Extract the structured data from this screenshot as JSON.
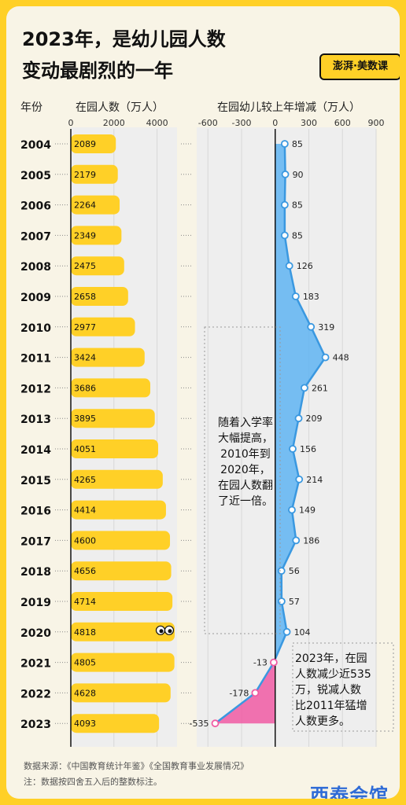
{
  "title_line1": "2023年，是幼儿园人数",
  "title_line2": "变动最剧烈的一年",
  "logo_text": "澎湃·美数课",
  "headers": {
    "year": "年份",
    "enrollment": "在园人数（万人）",
    "change": "在园幼儿较上年增减（万人）"
  },
  "chart_data": [
    {
      "type": "bar",
      "orientation": "horizontal",
      "title": "在园人数（万人）",
      "categories": [
        "2004",
        "2005",
        "2006",
        "2007",
        "2008",
        "2009",
        "2010",
        "2011",
        "2012",
        "2013",
        "2014",
        "2015",
        "2016",
        "2017",
        "2018",
        "2019",
        "2020",
        "2021",
        "2022",
        "2023"
      ],
      "values": [
        2089,
        2179,
        2264,
        2349,
        2475,
        2658,
        2977,
        3424,
        3686,
        3895,
        4051,
        4265,
        4414,
        4600,
        4656,
        4714,
        4818,
        4805,
        4628,
        4093
      ],
      "xlim": [
        0,
        4800
      ],
      "ticks": [
        0,
        2000,
        4000
      ],
      "bar_color": "#FFD027"
    },
    {
      "type": "area",
      "title": "在园幼儿较上年增减（万人）",
      "categories": [
        "2004",
        "2005",
        "2006",
        "2007",
        "2008",
        "2009",
        "2010",
        "2011",
        "2012",
        "2013",
        "2014",
        "2015",
        "2016",
        "2017",
        "2018",
        "2019",
        "2020",
        "2021",
        "2022",
        "2023"
      ],
      "values": [
        85,
        90,
        85,
        85,
        126,
        183,
        319,
        448,
        261,
        209,
        156,
        214,
        149,
        186,
        56,
        57,
        104,
        -13,
        -178,
        -535
      ],
      "xlim": [
        -700,
        900
      ],
      "ticks": [
        -600,
        -300,
        0,
        300,
        600,
        900
      ],
      "positive_color": "#5FB4F2",
      "negative_color": "#F05BA3"
    }
  ],
  "annotation_growth": "随着入学率\n大幅提高，\n2010年到\n2020年，\n在园人数翻\n了近一倍。",
  "annotation_decline": "2023年，在园\n人数减少近535\n万，锐减人数\n比2011年猛增\n人数更多。",
  "source_line": "数据来源：《中国教育统计年鉴》《全国教育事业发展情况》",
  "note_line": "注：数据按四舍五入后的整数标注。",
  "watermark": "西泰会馆"
}
